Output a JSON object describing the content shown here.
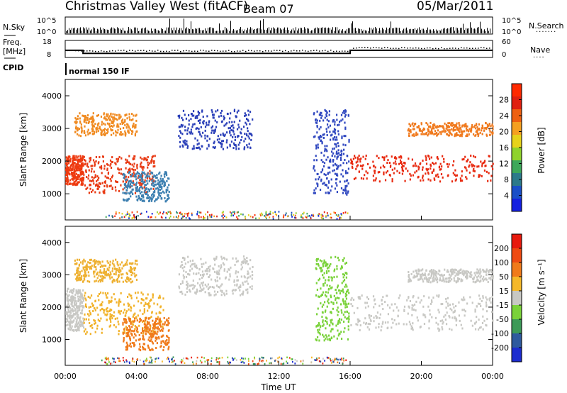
{
  "header": {
    "station": "Christmas Valley West (fitACF)",
    "beam": "Beam 07",
    "date": "05/Mar/2011"
  },
  "status_panels": {
    "nsky_label": "N.Sky",
    "nsearch_label": "N.Search",
    "nsky_ticks": [
      "10^5",
      "10^0"
    ],
    "nsearch_ticks": [
      "10^5",
      "10^0"
    ],
    "freq_label_1": "Freq.",
    "freq_label_2": "[MHz]",
    "freq_ticks": [
      "18",
      "8"
    ],
    "nave_label": "Nave",
    "nave_ticks": [
      "60",
      "0"
    ],
    "cpid_label": "CPID",
    "cpid_value": "normal 150 IF",
    "freq_steps": [
      {
        "t": 0,
        "f": 12.2
      },
      {
        "t": 1.0,
        "f": 10.4
      },
      {
        "t": 16.0,
        "f": 12.2
      },
      {
        "t": 24.0,
        "f": 12.2
      }
    ]
  },
  "colors": {
    "frame": "#000000",
    "ground_scatter": "#c8c8c4"
  },
  "chart_data": [
    {
      "type": "heatmap",
      "name": "power",
      "ylabel": "Slant Range [km]",
      "xlim": [
        0,
        24
      ],
      "ylim": [
        200,
        4500
      ],
      "y_ticks": [
        1000,
        2000,
        3000,
        4000
      ],
      "y_tick_labels": [
        "1000",
        "2000",
        "3000",
        "4000"
      ],
      "colorbar": {
        "label": "Power [dB]",
        "tick_labels": [
          "4",
          "8",
          "12",
          "16",
          "20",
          "24",
          "28"
        ],
        "colors": [
          "#1520e0",
          "#1a4fc8",
          "#2c7a8a",
          "#3ea85a",
          "#8fd22c",
          "#e6d21a",
          "#f5a020",
          "#ee6010",
          "#e02010",
          "#ff2a00"
        ]
      },
      "regions": [
        {
          "t0": 0.0,
          "t1": 1.0,
          "r0": 1300,
          "r1": 2200,
          "color": "#ee3a10"
        },
        {
          "t0": 1.0,
          "t1": 5.0,
          "r0": 1050,
          "r1": 2200,
          "color": "#e83a14"
        },
        {
          "t0": 0.5,
          "t1": 4.0,
          "r0": 2800,
          "r1": 3500,
          "color": "#f08a20"
        },
        {
          "t0": 3.2,
          "t1": 5.8,
          "r0": 800,
          "r1": 1700,
          "color": "#3c7fb0"
        },
        {
          "t0": 6.3,
          "t1": 10.5,
          "r0": 2400,
          "r1": 3600,
          "color": "#2a3fb8"
        },
        {
          "t0": 13.9,
          "t1": 15.9,
          "r0": 1000,
          "r1": 3600,
          "color": "#3048c0"
        },
        {
          "t0": 16.0,
          "t1": 24.0,
          "r0": 1400,
          "r1": 2200,
          "color": "#e82a10"
        },
        {
          "t0": 19.2,
          "t1": 24.0,
          "r0": 2800,
          "r1": 3200,
          "color": "#f07a1e"
        }
      ]
    },
    {
      "type": "heatmap",
      "name": "velocity",
      "ylabel": "Slant Range [km]",
      "xlabel": "Time UT",
      "xlim": [
        0,
        24
      ],
      "ylim": [
        200,
        4500
      ],
      "x_ticks": [
        0,
        4,
        8,
        12,
        16,
        20,
        24
      ],
      "x_tick_labels": [
        "00:00",
        "04:00",
        "08:00",
        "12:00",
        "16:00",
        "20:00",
        "00:00"
      ],
      "y_ticks": [
        1000,
        2000,
        3000,
        4000
      ],
      "y_tick_labels": [
        "1000",
        "2000",
        "3000",
        "4000"
      ],
      "colorbar": {
        "label": "Velocity [m s⁻¹]",
        "tick_labels": [
          "200",
          "100",
          "50",
          "15",
          "-15",
          "-50",
          "-100",
          "-200"
        ],
        "colors": [
          "#1c2ccf",
          "#2e5a9e",
          "#3d9a58",
          "#7ad23a",
          "#c8c8c4",
          "#f5b82a",
          "#f07a1a",
          "#ee4a12",
          "#e81a0e"
        ]
      },
      "regions": [
        {
          "t0": 0.0,
          "t1": 1.0,
          "r0": 1300,
          "r1": 2600,
          "color": "#c8c8c4"
        },
        {
          "t0": 1.0,
          "t1": 5.5,
          "r0": 1200,
          "r1": 2500,
          "color": "#f1b22a"
        },
        {
          "t0": 0.5,
          "t1": 4.0,
          "r0": 2800,
          "r1": 3500,
          "color": "#eeb030"
        },
        {
          "t0": 3.2,
          "t1": 5.8,
          "r0": 700,
          "r1": 1700,
          "color": "#f07a1a"
        },
        {
          "t0": 6.3,
          "t1": 10.5,
          "r0": 2400,
          "r1": 3600,
          "color": "#c8c8c4"
        },
        {
          "t0": 14.0,
          "t1": 15.9,
          "r0": 1000,
          "r1": 3600,
          "color": "#7ad23a"
        },
        {
          "t0": 16.0,
          "t1": 24.0,
          "r0": 1300,
          "r1": 2400,
          "color": "#c8c8c4"
        },
        {
          "t0": 19.2,
          "t1": 24.0,
          "r0": 2800,
          "r1": 3200,
          "color": "#c8c8c4"
        }
      ]
    }
  ]
}
